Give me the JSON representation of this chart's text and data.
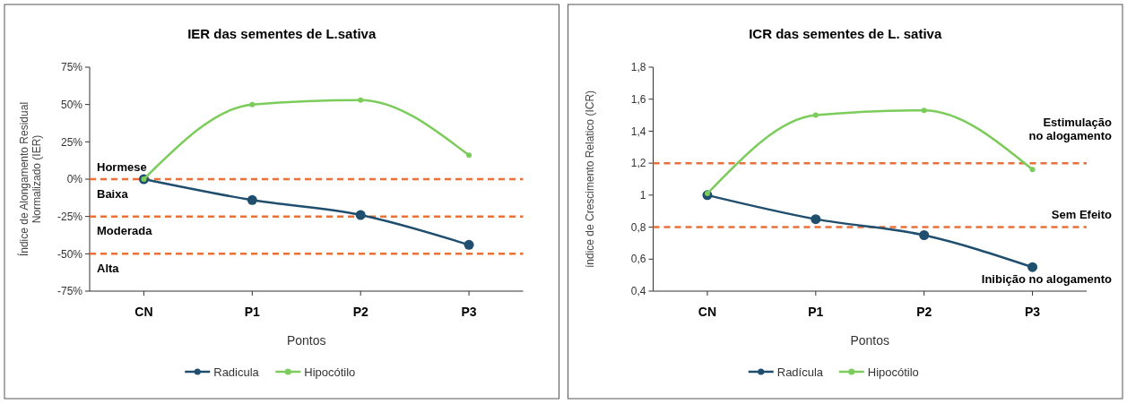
{
  "chart_data": [
    {
      "type": "line",
      "title": "IER das sementes de L.sativa",
      "xlabel": "Pontos",
      "ylabel": "Índice de Alongamento Residual Normalizado (IER)",
      "categories": [
        "CN",
        "P1",
        "P2",
        "P3"
      ],
      "series": [
        {
          "name": "Radicula",
          "color": "#1f4e6e",
          "values": [
            0,
            -14,
            -24,
            -44
          ]
        },
        {
          "name": "Hipocótilo",
          "color": "#7ccc5c",
          "values": [
            0,
            50,
            53,
            16
          ]
        }
      ],
      "ylim": [
        -75,
        75
      ],
      "yticks": [
        {
          "value": -75,
          "label": "-75%"
        },
        {
          "value": -50,
          "label": "-50%"
        },
        {
          "value": -25,
          "label": "-25%"
        },
        {
          "value": 0,
          "label": "0%"
        },
        {
          "value": 25,
          "label": "25%"
        },
        {
          "value": 50,
          "label": "50%"
        },
        {
          "value": 75,
          "label": "75%"
        }
      ],
      "ref_lines": [
        {
          "axis": "y",
          "value": 0,
          "color": "#e8703a",
          "line_style": "dashed"
        },
        {
          "axis": "y",
          "value": -25,
          "color": "#e8703a",
          "line_style": "dashed"
        },
        {
          "axis": "y",
          "value": -50,
          "color": "#e8703a",
          "line_style": "dashed"
        }
      ],
      "annotations": [
        "Hormese",
        "Baixa",
        "Moderada",
        "Alta"
      ],
      "grid": false,
      "legend": "bottom",
      "marker": "circle",
      "line_style": "solid"
    },
    {
      "type": "line",
      "title": "ICR  das sementes de L. sativa",
      "xlabel": "Pontos",
      "ylabel": "índice de Crescimento Relatico (ICR)",
      "categories": [
        "CN",
        "P1",
        "P2",
        "P3"
      ],
      "series": [
        {
          "name": "Radícula",
          "color": "#1f4e6e",
          "values": [
            1,
            0.85,
            0.75,
            0.55
          ]
        },
        {
          "name": "Hipocótilo",
          "color": "#7ccc5c",
          "values": [
            1.01,
            1.5,
            1.53,
            1.16
          ]
        }
      ],
      "ylim": [
        0.4,
        1.8
      ],
      "yticks": [
        {
          "value": 0.4,
          "label": "0,4"
        },
        {
          "value": 0.6,
          "label": "0,6"
        },
        {
          "value": 0.8,
          "label": "0,8"
        },
        1,
        {
          "value": 1.2,
          "label": "1,2"
        },
        {
          "value": 1.4,
          "label": "1,4"
        },
        {
          "value": 1.6,
          "label": "1,6"
        },
        {
          "value": 1.8,
          "label": "1,8"
        }
      ],
      "ref_lines": [
        {
          "axis": "y",
          "value": 1.2,
          "color": "#e8703a",
          "line_style": "dashed"
        },
        {
          "axis": "y",
          "value": 0.8,
          "color": "#e8703a",
          "line_style": "dashed"
        }
      ],
      "annotations": [
        "Estimulação no alogamento",
        "Sem Efeito",
        "Inibição no alogamento"
      ],
      "grid": false,
      "legend": "bottom",
      "marker": "circle",
      "line_style": "solid"
    }
  ]
}
